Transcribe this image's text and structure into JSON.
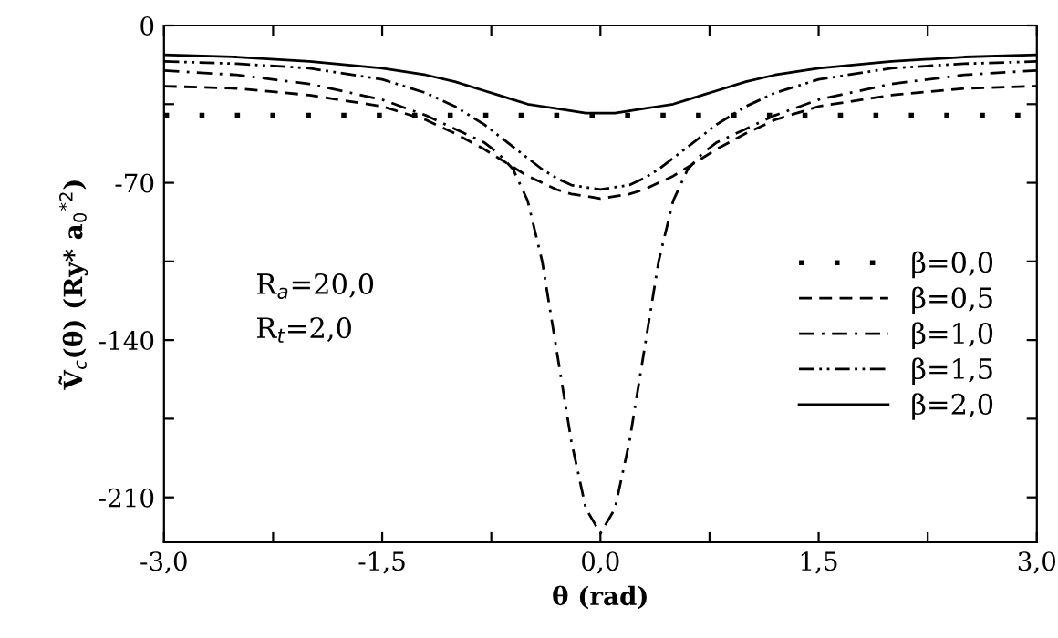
{
  "chart_data": {
    "type": "line",
    "xlabel": "θ (rad)",
    "ylabel": "Ṽ$_{c}$(θ) (Ry* a$_{0}$$^{*2}$)",
    "x": [
      -3,
      -2.5,
      -2,
      -1.5,
      -1.2,
      -1,
      -0.8,
      -0.7,
      -0.6,
      -0.5,
      -0.4,
      -0.3,
      -0.2,
      -0.1,
      0,
      0.1,
      0.2,
      0.3,
      0.4,
      0.5,
      0.6,
      0.7,
      0.8,
      1,
      1.2,
      1.5,
      2,
      2.5,
      3
    ],
    "series": [
      {
        "name": "β=0,0",
        "color": "#000000",
        "line_style": "dotted",
        "values": [
          -40,
          -40,
          -40,
          -40,
          -40,
          -40,
          -40,
          -40,
          -40,
          -40,
          -40,
          -40,
          -40,
          -40,
          -40,
          -40,
          -40,
          -40,
          -40,
          -40,
          -40,
          -40,
          -40,
          -40,
          -40,
          -40,
          -40,
          -40,
          -40
        ]
      },
      {
        "name": "β=0,5",
        "color": "#000000",
        "line_style": "dashed",
        "values": [
          -27,
          -28,
          -31,
          -36,
          -42,
          -48,
          -55,
          -59,
          -63,
          -67,
          -70,
          -73,
          -75,
          -76,
          -77,
          -76,
          -75,
          -73,
          -70,
          -67,
          -63,
          -59,
          -55,
          -48,
          -42,
          -36,
          -31,
          -28,
          -27
        ]
      },
      {
        "name": "β=1,0",
        "color": "#000000",
        "line_style": "dashdot",
        "values": [
          -20,
          -22,
          -26,
          -33,
          -40,
          -46,
          -52,
          -57,
          -64,
          -78,
          -105,
          -145,
          -185,
          -215,
          -226,
          -215,
          -185,
          -145,
          -105,
          -78,
          -64,
          -57,
          -52,
          -46,
          -40,
          -33,
          -26,
          -22,
          -20
        ]
      },
      {
        "name": "β=1,5",
        "color": "#000000",
        "line_style": "dashdotdot",
        "values": [
          -16,
          -17,
          -19,
          -24,
          -30,
          -36,
          -44,
          -49,
          -54,
          -59,
          -64,
          -68,
          -71,
          -72,
          -73,
          -72,
          -71,
          -68,
          -64,
          -59,
          -54,
          -49,
          -44,
          -36,
          -30,
          -24,
          -19,
          -17,
          -16
        ]
      },
      {
        "name": "β=2,0",
        "color": "#000000",
        "line_style": "solid",
        "values": [
          -13,
          -14,
          -16,
          -19,
          -22,
          -25,
          -29,
          -31,
          -33,
          -35,
          -36,
          -37,
          -38,
          -39,
          -39,
          -39,
          -38,
          -37,
          -36,
          -35,
          -33,
          -31,
          -29,
          -25,
          -22,
          -19,
          -16,
          -14,
          -13
        ]
      }
    ],
    "xlim": [
      -3,
      3
    ],
    "ylim": [
      -230,
      0
    ],
    "xticks": [
      {
        "value": -3,
        "label": "-3,0"
      },
      {
        "value": -2.25,
        "label": null
      },
      {
        "value": -1.5,
        "label": "-1,5"
      },
      {
        "value": -0.75,
        "label": null
      },
      {
        "value": 0,
        "label": "0,0"
      },
      {
        "value": 0.75,
        "label": null
      },
      {
        "value": 1.5,
        "label": "1,5"
      },
      {
        "value": 2.25,
        "label": null
      },
      {
        "value": 3,
        "label": "3,0"
      }
    ],
    "yticks": [
      0,
      {
        "value": -35,
        "label": null
      },
      -70,
      {
        "value": -105,
        "label": null
      },
      -140,
      {
        "value": -175,
        "label": null
      },
      -210
    ],
    "annotations": [
      "R$_{a}$=20,0",
      "R$_{t}$=2,0"
    ],
    "legend": "center right",
    "grid": false,
    "marker": "none"
  }
}
